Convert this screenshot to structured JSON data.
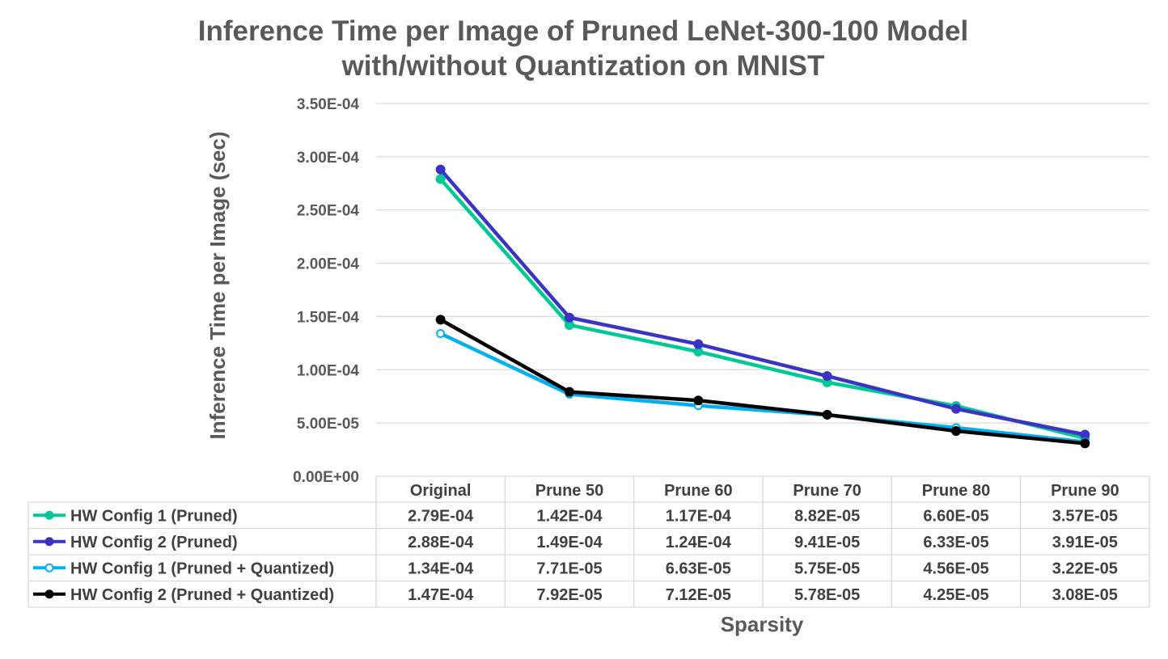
{
  "chart_data": {
    "type": "line",
    "title_line1": "Inference Time per Image of Pruned LeNet-300-100 Model",
    "title_line2": "with/without Quantization on MNIST",
    "xlabel": "Sparsity",
    "ylabel": "Inference Time per Image (sec)",
    "ylim": [
      0,
      0.00035
    ],
    "yticks": [
      "0.00E+00",
      "5.00E-05",
      "1.00E-04",
      "1.50E-04",
      "2.00E-04",
      "2.50E-04",
      "3.00E-04",
      "3.50E-04"
    ],
    "ytick_values": [
      0,
      5e-05,
      0.0001,
      0.00015,
      0.0002,
      0.00025,
      0.0003,
      0.00035
    ],
    "grid": true,
    "legend_placement": "data-table",
    "categories": [
      "Original",
      "Prune 50",
      "Prune 60",
      "Prune 70",
      "Prune 80",
      "Prune 90"
    ],
    "series": [
      {
        "name": "HW Config 1 (Pruned)",
        "color": "#00C896",
        "marker": "filled",
        "values": [
          0.000279,
          0.000142,
          0.000117,
          8.82e-05,
          6.6e-05,
          3.57e-05
        ],
        "labels": [
          "2.79E-04",
          "1.42E-04",
          "1.17E-04",
          "8.82E-05",
          "6.60E-05",
          "3.57E-05"
        ]
      },
      {
        "name": "HW Config 2 (Pruned)",
        "color": "#3A33C4",
        "marker": "filled",
        "values": [
          0.000288,
          0.000149,
          0.000124,
          9.41e-05,
          6.33e-05,
          3.91e-05
        ],
        "labels": [
          "2.88E-04",
          "1.49E-04",
          "1.24E-04",
          "9.41E-05",
          "6.33E-05",
          "3.91E-05"
        ]
      },
      {
        "name": "HW Config 1 (Pruned + Quantized)",
        "color": "#00B0F0",
        "marker": "hollow",
        "values": [
          0.000134,
          7.71e-05,
          6.63e-05,
          5.75e-05,
          4.56e-05,
          3.22e-05
        ],
        "labels": [
          "1.34E-04",
          "7.71E-05",
          "6.63E-05",
          "5.75E-05",
          "4.56E-05",
          "3.22E-05"
        ]
      },
      {
        "name": "HW Config 2 (Pruned + Quantized)",
        "color": "#000000",
        "marker": "filled",
        "values": [
          0.000147,
          7.92e-05,
          7.12e-05,
          5.78e-05,
          4.25e-05,
          3.08e-05
        ],
        "labels": [
          "1.47E-04",
          "7.92E-05",
          "7.12E-05",
          "5.78E-05",
          "4.25E-05",
          "3.08E-05"
        ]
      }
    ]
  }
}
